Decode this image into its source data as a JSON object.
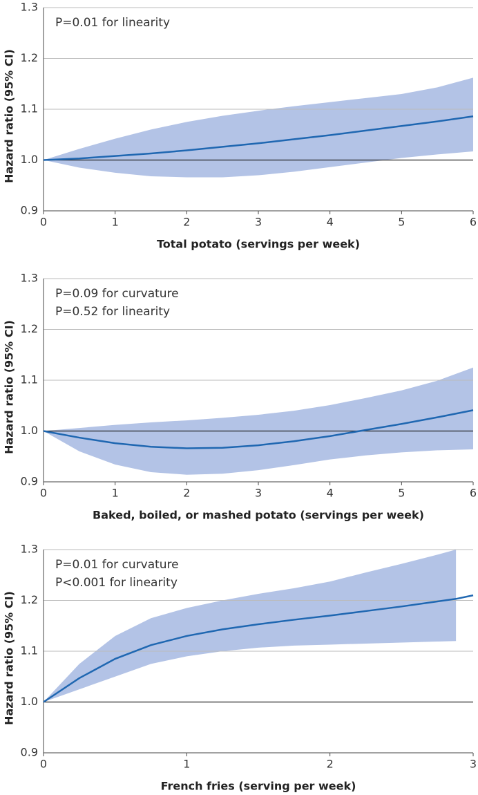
{
  "chart_data": [
    {
      "type": "line",
      "x_label": "Total potato (servings per week)",
      "y_label": "Hazard ratio (95% CI)",
      "annotations": [
        "P=0.01 for linearity"
      ],
      "x": [
        0,
        0.5,
        1,
        1.5,
        2,
        2.5,
        3,
        3.5,
        4,
        4.5,
        5,
        5.5,
        6
      ],
      "series": [
        {
          "color": "#1f67b1",
          "values": [
            1.0,
            1.003,
            1.008,
            1.013,
            1.019,
            1.026,
            1.033,
            1.041,
            1.049,
            1.058,
            1.067,
            1.076,
            1.086
          ]
        }
      ],
      "band": {
        "color": "#b3c3e6",
        "upper": [
          1.0,
          1.022,
          1.042,
          1.06,
          1.075,
          1.087,
          1.097,
          1.106,
          1.114,
          1.122,
          1.13,
          1.143,
          1.162
        ],
        "lower": [
          1.0,
          0.985,
          0.975,
          0.968,
          0.966,
          0.966,
          0.97,
          0.977,
          0.986,
          0.995,
          1.004,
          1.011,
          1.017
        ]
      },
      "reference_line": 1,
      "xlim": [
        0,
        6
      ],
      "xticks": [
        0,
        1,
        2,
        3,
        4,
        5,
        6
      ],
      "ylim": [
        0.9,
        1.3
      ],
      "yticks": [
        0.9,
        {
          "value": 1,
          "label": "1.0"
        },
        1.1,
        1.2,
        1.3
      ],
      "grid": true
    },
    {
      "type": "line",
      "x_label": "Baked, boiled, or mashed potato (servings per week)",
      "y_label": "Hazard ratio (95% CI)",
      "annotations": [
        "P=0.09 for curvature",
        "P=0.52 for linearity"
      ],
      "x": [
        0,
        0.5,
        1,
        1.5,
        2,
        2.5,
        3,
        3.5,
        4,
        4.5,
        5,
        5.5,
        6
      ],
      "series": [
        {
          "color": "#1f67b1",
          "values": [
            1.0,
            0.987,
            0.976,
            0.969,
            0.966,
            0.967,
            0.972,
            0.98,
            0.99,
            1.002,
            1.014,
            1.027,
            1.041
          ]
        }
      ],
      "band": {
        "color": "#b3c3e6",
        "upper": [
          1.0,
          1.006,
          1.012,
          1.017,
          1.021,
          1.026,
          1.032,
          1.04,
          1.051,
          1.065,
          1.08,
          1.099,
          1.125
        ],
        "lower": [
          1.0,
          0.96,
          0.934,
          0.919,
          0.914,
          0.916,
          0.923,
          0.933,
          0.944,
          0.952,
          0.958,
          0.962,
          0.964
        ]
      },
      "reference_line": 1,
      "xlim": [
        0,
        6
      ],
      "xticks": [
        0,
        1,
        2,
        3,
        4,
        5,
        6
      ],
      "ylim": [
        0.9,
        1.3
      ],
      "yticks": [
        0.9,
        {
          "value": 1,
          "label": "1.0"
        },
        1.1,
        1.2,
        1.3
      ],
      "grid": true
    },
    {
      "type": "line",
      "x_label": "French fries (serving per week)",
      "y_label": "Hazard ratio (95% CI)",
      "annotations": [
        "P=0.01 for curvature",
        "P<0.001 for linearity"
      ],
      "x": [
        0,
        0.25,
        0.5,
        0.75,
        1,
        1.25,
        1.5,
        1.75,
        2,
        2.25,
        2.5,
        2.75,
        2.88,
        3
      ],
      "series": [
        {
          "color": "#1f67b1",
          "values": [
            1.0,
            1.047,
            1.085,
            1.112,
            1.13,
            1.143,
            1.153,
            1.162,
            1.17,
            1.179,
            1.188,
            1.198,
            1.203,
            1.21
          ]
        }
      ],
      "band": {
        "color": "#b3c3e6",
        "upper": [
          1.0,
          1.075,
          1.13,
          1.165,
          1.185,
          1.2,
          1.213,
          1.224,
          1.237,
          1.255,
          1.272,
          1.29,
          1.3,
          null
        ],
        "lower": [
          1.0,
          1.025,
          1.05,
          1.075,
          1.09,
          1.1,
          1.107,
          1.111,
          1.113,
          1.115,
          1.117,
          1.119,
          1.12,
          null
        ]
      },
      "reference_line": 1,
      "xlim": [
        0,
        3
      ],
      "xticks": [
        0,
        1,
        2,
        3
      ],
      "ylim": [
        0.9,
        1.3
      ],
      "yticks": [
        0.9,
        {
          "value": 1,
          "label": "1.0"
        },
        1.1,
        1.2,
        1.3
      ],
      "grid": true
    }
  ]
}
